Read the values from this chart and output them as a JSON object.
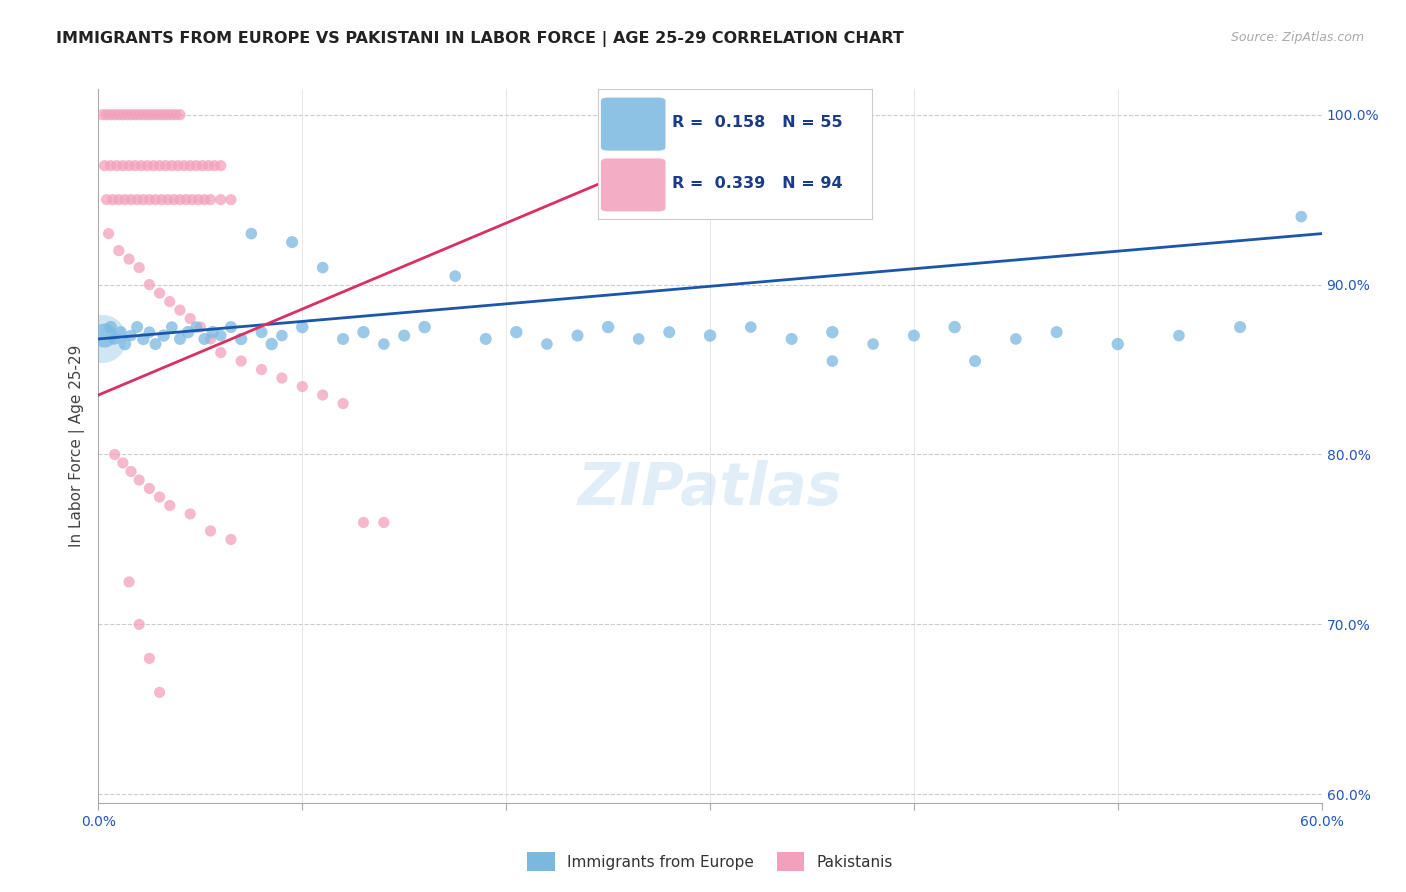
{
  "title": "IMMIGRANTS FROM EUROPE VS PAKISTANI IN LABOR FORCE | AGE 25-29 CORRELATION CHART",
  "source": "Source: ZipAtlas.com",
  "ylabel": "In Labor Force | Age 25-29",
  "xlim": [
    0.0,
    0.6
  ],
  "ylim": [
    0.595,
    1.015
  ],
  "xticks": [
    0.0,
    0.1,
    0.2,
    0.3,
    0.4,
    0.5,
    0.6
  ],
  "xticklabels": [
    "0.0%",
    "",
    "",
    "",
    "",
    "",
    "60.0%"
  ],
  "yticks_right": [
    0.6,
    0.7,
    0.8,
    0.9,
    1.0
  ],
  "yticklabels_right": [
    "60.0%",
    "70.0%",
    "80.0%",
    "90.0%",
    "100.0%"
  ],
  "r_blue": 0.158,
  "n_blue": 55,
  "r_pink": 0.339,
  "n_pink": 94,
  "blue_color": "#7ab8e0",
  "pink_color": "#f2a0bb",
  "blue_line_color": "#1a56aa",
  "pink_line_color": "#d83060",
  "legend_text_color": "#1a3a8a",
  "blue_line_x0": 0.0,
  "blue_line_y0": 0.868,
  "blue_line_x1": 0.6,
  "blue_line_y1": 0.93,
  "pink_line_x0": 0.0,
  "pink_line_y0": 0.835,
  "pink_line_x1": 0.33,
  "pink_line_y1": 1.002,
  "blue_points_x": [
    0.003,
    0.006,
    0.008,
    0.011,
    0.013,
    0.016,
    0.019,
    0.022,
    0.025,
    0.028,
    0.032,
    0.036,
    0.04,
    0.044,
    0.048,
    0.052,
    0.056,
    0.06,
    0.065,
    0.07,
    0.075,
    0.08,
    0.085,
    0.09,
    0.095,
    0.1,
    0.11,
    0.12,
    0.13,
    0.14,
    0.15,
    0.16,
    0.175,
    0.19,
    0.205,
    0.22,
    0.235,
    0.25,
    0.265,
    0.28,
    0.3,
    0.32,
    0.34,
    0.36,
    0.38,
    0.4,
    0.42,
    0.45,
    0.47,
    0.5,
    0.53,
    0.56,
    0.59,
    0.43,
    0.36
  ],
  "blue_points_y": [
    0.87,
    0.875,
    0.868,
    0.872,
    0.865,
    0.87,
    0.875,
    0.868,
    0.872,
    0.865,
    0.87,
    0.875,
    0.868,
    0.872,
    0.875,
    0.868,
    0.872,
    0.87,
    0.875,
    0.868,
    0.93,
    0.872,
    0.865,
    0.87,
    0.925,
    0.875,
    0.91,
    0.868,
    0.872,
    0.865,
    0.87,
    0.875,
    0.905,
    0.868,
    0.872,
    0.865,
    0.87,
    0.875,
    0.868,
    0.872,
    0.87,
    0.875,
    0.868,
    0.872,
    0.865,
    0.87,
    0.875,
    0.868,
    0.872,
    0.865,
    0.87,
    0.875,
    0.94,
    0.855,
    0.855
  ],
  "blue_points_size": [
    300,
    80,
    70,
    75,
    80,
    70,
    75,
    80,
    70,
    75,
    80,
    70,
    75,
    80,
    70,
    75,
    80,
    70,
    75,
    80,
    70,
    75,
    80,
    70,
    75,
    80,
    70,
    75,
    80,
    70,
    75,
    80,
    70,
    75,
    80,
    70,
    75,
    80,
    70,
    75,
    80,
    70,
    75,
    80,
    70,
    75,
    80,
    70,
    75,
    80,
    70,
    75,
    70,
    75,
    70
  ],
  "pink_points_x": [
    0.002,
    0.004,
    0.006,
    0.008,
    0.01,
    0.012,
    0.014,
    0.016,
    0.018,
    0.02,
    0.022,
    0.024,
    0.026,
    0.028,
    0.03,
    0.032,
    0.034,
    0.036,
    0.038,
    0.04,
    0.003,
    0.006,
    0.009,
    0.012,
    0.015,
    0.018,
    0.021,
    0.024,
    0.027,
    0.03,
    0.033,
    0.036,
    0.039,
    0.042,
    0.045,
    0.048,
    0.051,
    0.054,
    0.057,
    0.06,
    0.004,
    0.007,
    0.01,
    0.013,
    0.016,
    0.019,
    0.022,
    0.025,
    0.028,
    0.031,
    0.034,
    0.037,
    0.04,
    0.043,
    0.046,
    0.049,
    0.052,
    0.055,
    0.06,
    0.065,
    0.005,
    0.01,
    0.015,
    0.02,
    0.025,
    0.03,
    0.035,
    0.04,
    0.045,
    0.05,
    0.055,
    0.06,
    0.07,
    0.08,
    0.09,
    0.1,
    0.11,
    0.12,
    0.13,
    0.14,
    0.008,
    0.012,
    0.016,
    0.02,
    0.025,
    0.03,
    0.035,
    0.045,
    0.055,
    0.065,
    0.015,
    0.02,
    0.025,
    0.03
  ],
  "pink_points_y": [
    1.0,
    1.0,
    1.0,
    1.0,
    1.0,
    1.0,
    1.0,
    1.0,
    1.0,
    1.0,
    1.0,
    1.0,
    1.0,
    1.0,
    1.0,
    1.0,
    1.0,
    1.0,
    1.0,
    1.0,
    0.97,
    0.97,
    0.97,
    0.97,
    0.97,
    0.97,
    0.97,
    0.97,
    0.97,
    0.97,
    0.97,
    0.97,
    0.97,
    0.97,
    0.97,
    0.97,
    0.97,
    0.97,
    0.97,
    0.97,
    0.95,
    0.95,
    0.95,
    0.95,
    0.95,
    0.95,
    0.95,
    0.95,
    0.95,
    0.95,
    0.95,
    0.95,
    0.95,
    0.95,
    0.95,
    0.95,
    0.95,
    0.95,
    0.95,
    0.95,
    0.93,
    0.92,
    0.915,
    0.91,
    0.9,
    0.895,
    0.89,
    0.885,
    0.88,
    0.875,
    0.868,
    0.86,
    0.855,
    0.85,
    0.845,
    0.84,
    0.835,
    0.83,
    0.76,
    0.76,
    0.8,
    0.795,
    0.79,
    0.785,
    0.78,
    0.775,
    0.77,
    0.765,
    0.755,
    0.75,
    0.725,
    0.7,
    0.68,
    0.66
  ],
  "pink_points_size": [
    65,
    65,
    65,
    65,
    65,
    65,
    65,
    65,
    65,
    65,
    65,
    65,
    65,
    65,
    65,
    65,
    65,
    65,
    65,
    65,
    65,
    65,
    65,
    65,
    65,
    65,
    65,
    65,
    65,
    65,
    65,
    65,
    65,
    65,
    65,
    65,
    65,
    65,
    65,
    65,
    65,
    65,
    65,
    65,
    65,
    65,
    65,
    65,
    65,
    65,
    65,
    65,
    65,
    65,
    65,
    65,
    65,
    65,
    65,
    65,
    65,
    65,
    65,
    65,
    65,
    65,
    65,
    65,
    65,
    65,
    65,
    65,
    65,
    65,
    65,
    65,
    65,
    65,
    65,
    65,
    65,
    65,
    65,
    65,
    65,
    65,
    65,
    65,
    65,
    65,
    65,
    65,
    65,
    65
  ]
}
